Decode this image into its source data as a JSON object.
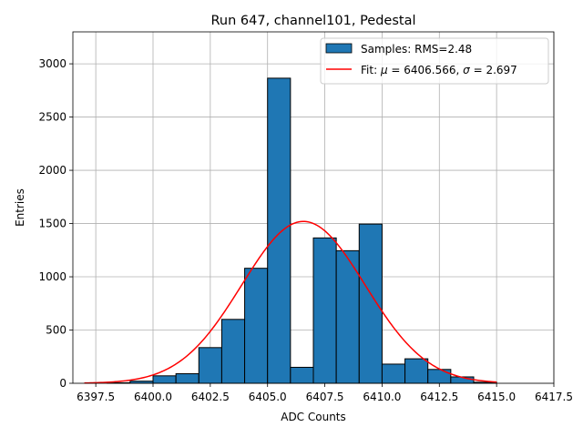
{
  "chart_data": {
    "type": "histogram",
    "title": "Run 647, channel101, Pedestal",
    "xlabel": "ADC Counts",
    "ylabel": "Entries",
    "xlim": [
      6396.5,
      6417.5
    ],
    "ylim": [
      0,
      3300
    ],
    "grid": true,
    "x_ticks": [
      6397.5,
      6400.0,
      6402.5,
      6405.0,
      6407.5,
      6410.0,
      6412.5,
      6415.0,
      6417.5
    ],
    "x_tick_labels": [
      "6397.5",
      "6400.0",
      "6402.5",
      "6405.0",
      "6407.5",
      "6410.0",
      "6412.5",
      "6415.0",
      "6417.5"
    ],
    "y_ticks": [
      0,
      500,
      1000,
      1500,
      2000,
      2500,
      3000
    ],
    "y_tick_labels": [
      "0",
      "500",
      "1000",
      "1500",
      "2000",
      "2500",
      "3000"
    ],
    "bin_width": 1,
    "bins": [
      {
        "left": 6398,
        "count": 5
      },
      {
        "left": 6399,
        "count": 20
      },
      {
        "left": 6400,
        "count": 70
      },
      {
        "left": 6401,
        "count": 90
      },
      {
        "left": 6402,
        "count": 335
      },
      {
        "left": 6403,
        "count": 600
      },
      {
        "left": 6404,
        "count": 1080
      },
      {
        "left": 6405,
        "count": 2865
      },
      {
        "left": 6406,
        "count": 150
      },
      {
        "left": 6407,
        "count": 1365
      },
      {
        "left": 6408,
        "count": 1245
      },
      {
        "left": 6409,
        "count": 1495
      },
      {
        "left": 6410,
        "count": 180
      },
      {
        "left": 6411,
        "count": 230
      },
      {
        "left": 6412,
        "count": 130
      },
      {
        "left": 6413,
        "count": 60
      },
      {
        "left": 6414,
        "count": 10
      }
    ],
    "fit": {
      "mu": 6406.566,
      "sigma": 2.697,
      "amplitude": 1520,
      "x_range": [
        6397.0,
        6415.0
      ]
    },
    "legend": {
      "placement": "top-right",
      "entries": [
        {
          "name": "Samples: RMS=2.48",
          "kind": "bar"
        },
        {
          "name_prefix": "Fit: ",
          "mu_symbol": "μ",
          "mu_text": " = 6406.566, ",
          "sigma_symbol": "σ",
          "sigma_text": " = 2.697",
          "kind": "line"
        }
      ]
    },
    "colors": {
      "bar": "#1f77b4",
      "bar_edge": "#000000",
      "fit": "#ff0000",
      "grid": "#b0b0b0"
    }
  }
}
